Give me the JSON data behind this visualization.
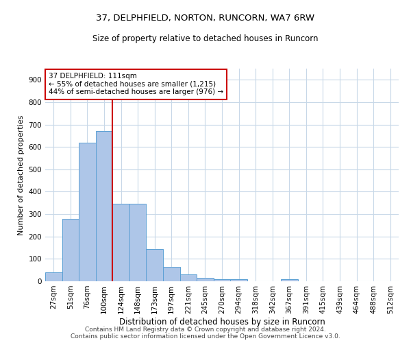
{
  "title": "37, DELPHFIELD, NORTON, RUNCORN, WA7 6RW",
  "subtitle": "Size of property relative to detached houses in Runcorn",
  "xlabel": "Distribution of detached houses by size in Runcorn",
  "ylabel": "Number of detached properties",
  "categories": [
    "27sqm",
    "51sqm",
    "76sqm",
    "100sqm",
    "124sqm",
    "148sqm",
    "173sqm",
    "197sqm",
    "221sqm",
    "245sqm",
    "270sqm",
    "294sqm",
    "318sqm",
    "342sqm",
    "367sqm",
    "391sqm",
    "415sqm",
    "439sqm",
    "464sqm",
    "488sqm",
    "512sqm"
  ],
  "values": [
    40,
    280,
    620,
    670,
    345,
    345,
    145,
    65,
    30,
    15,
    10,
    10,
    0,
    0,
    8,
    0,
    0,
    0,
    0,
    0,
    0
  ],
  "bar_color": "#aec6e8",
  "bar_edge_color": "#5a9fd4",
  "property_line_x": 3.5,
  "annotation_text": "37 DELPHFIELD: 111sqm\n← 55% of detached houses are smaller (1,215)\n44% of semi-detached houses are larger (976) →",
  "annotation_box_color": "#ffffff",
  "annotation_box_edge": "#cc0000",
  "vline_color": "#cc0000",
  "ylim": [
    0,
    950
  ],
  "yticks": [
    0,
    100,
    200,
    300,
    400,
    500,
    600,
    700,
    800,
    900
  ],
  "footer_line1": "Contains HM Land Registry data © Crown copyright and database right 2024.",
  "footer_line2": "Contains public sector information licensed under the Open Government Licence v3.0.",
  "bg_color": "#ffffff",
  "grid_color": "#c8d8e8",
  "title_fontsize": 9.5,
  "subtitle_fontsize": 8.5,
  "ylabel_fontsize": 8,
  "xlabel_fontsize": 8.5,
  "tick_fontsize": 7.5,
  "annotation_fontsize": 7.5,
  "footer_fontsize": 6.5
}
